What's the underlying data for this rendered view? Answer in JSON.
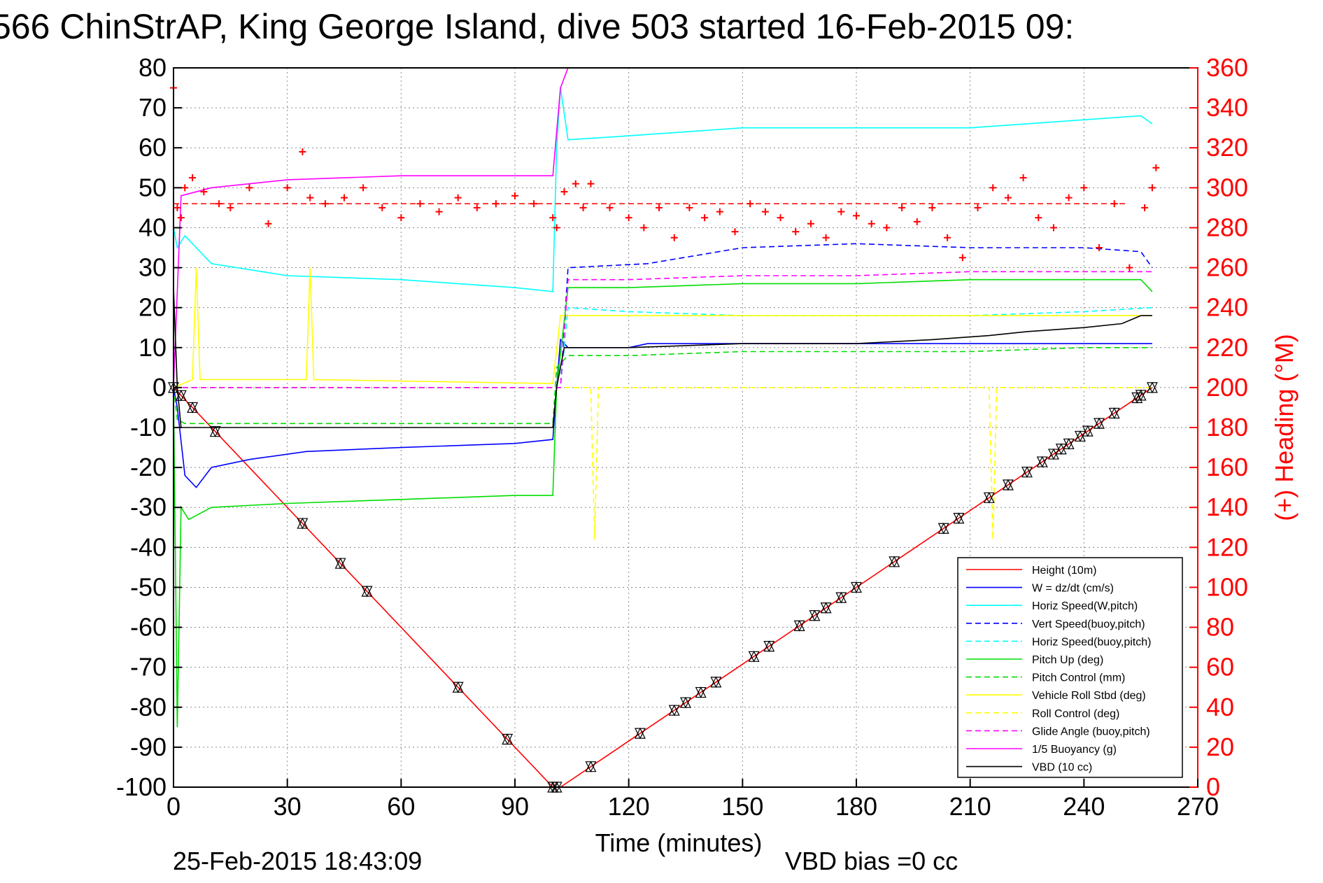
{
  "chart_data": {
    "type": "line",
    "title": "566 ChinStrAP, King George Island, dive 503 started 16-Feb-2015 09:",
    "xlabel": "Time (minutes)",
    "ylabel_right": "(+) Heading (°M)",
    "date_stamp": "25-Feb-2015 18:43:09",
    "vbd_bias": "VBD bias =0 cc",
    "xlim": [
      0,
      270
    ],
    "ylim": [
      -100,
      80
    ],
    "ylim_right": [
      0,
      360
    ],
    "x_ticks": [
      "0",
      "30",
      "60",
      "90",
      "120",
      "150",
      "180",
      "210",
      "240",
      "270"
    ],
    "y_ticks": [
      "80",
      "70",
      "60",
      "50",
      "40",
      "30",
      "20",
      "10",
      "0",
      "-10",
      "-20",
      "-30",
      "-40",
      "-50",
      "-60",
      "-70",
      "-80",
      "-90",
      "-100"
    ],
    "y_right_ticks": [
      "360",
      "340",
      "320",
      "300",
      "280",
      "260",
      "240",
      "220",
      "200",
      "180",
      "160",
      "140",
      "120",
      "100",
      "80",
      "60",
      "40",
      "20",
      "0"
    ],
    "grid": true,
    "legend_position": "bottom-right",
    "series": [
      {
        "name": "Height (10m)",
        "color": "#ff0000",
        "style": "solid",
        "x": [
          0,
          100,
          102,
          258
        ],
        "y": [
          0,
          -100,
          -100,
          0
        ]
      },
      {
        "name": "W = dz/dt (cm/s)",
        "color": "#0000ff",
        "style": "solid",
        "x": [
          0,
          1,
          3,
          6,
          10,
          20,
          35,
          60,
          90,
          100,
          101,
          102,
          104,
          110,
          120,
          125,
          150,
          180,
          210,
          240,
          255,
          258
        ],
        "y": [
          0,
          -5,
          -22,
          -25,
          -20,
          -18,
          -16,
          -15,
          -14,
          -13,
          0,
          12,
          10,
          10,
          10,
          11,
          11,
          11,
          11,
          11,
          11,
          11
        ]
      },
      {
        "name": "Horiz Speed(W,pitch)",
        "color": "#00ffff",
        "style": "solid",
        "x": [
          0,
          1,
          3,
          10,
          30,
          60,
          90,
          100,
          101,
          102,
          104,
          120,
          150,
          180,
          210,
          240,
          255,
          258
        ],
        "y": [
          40,
          35,
          38,
          31,
          28,
          27,
          25,
          24,
          60,
          75,
          62,
          63,
          65,
          65,
          65,
          67,
          68,
          66
        ]
      },
      {
        "name": "Vert Speed(buoy,pitch)",
        "color": "#0000ff",
        "style": "dashed",
        "x": [
          0,
          1,
          102,
          104,
          125,
          150,
          180,
          210,
          240,
          255,
          258
        ],
        "y": [
          0,
          0,
          0,
          30,
          31,
          35,
          36,
          35,
          35,
          34,
          30
        ]
      },
      {
        "name": "Horiz Speed(buoy,pitch)",
        "color": "#00ffff",
        "style": "dashed",
        "x": [
          0,
          1,
          102,
          104,
          120,
          150,
          180,
          210,
          240,
          258
        ],
        "y": [
          0,
          0,
          0,
          20,
          19,
          18,
          18,
          18,
          19,
          20
        ]
      },
      {
        "name": "Pitch Up (deg)",
        "color": "#00dd00",
        "style": "solid",
        "x": [
          0,
          1,
          2,
          4,
          10,
          30,
          60,
          90,
          100,
          101,
          104,
          120,
          150,
          180,
          210,
          240,
          255,
          258
        ],
        "y": [
          0,
          -85,
          -30,
          -33,
          -30,
          -29,
          -28,
          -27,
          -27,
          0,
          25,
          25,
          26,
          26,
          27,
          27,
          27,
          24
        ]
      },
      {
        "name": "Pitch Control (mm)",
        "color": "#00dd00",
        "style": "dashed",
        "x": [
          0,
          1,
          3,
          100,
          101,
          104,
          120,
          150,
          180,
          210,
          240,
          258
        ],
        "y": [
          0,
          -8,
          -9,
          -9,
          5,
          8,
          8,
          9,
          9,
          9,
          10,
          10
        ]
      },
      {
        "name": "Vehicle Roll Stbd (deg)",
        "color": "#ffff00",
        "style": "solid",
        "x": [
          0,
          5,
          6,
          7,
          35,
          36,
          37,
          100,
          102,
          120,
          150,
          180,
          210,
          240,
          258
        ],
        "y": [
          0,
          2,
          30,
          2,
          2,
          30,
          2,
          1,
          18,
          18,
          18,
          18,
          18,
          18,
          18
        ]
      },
      {
        "name": "Roll Control (deg)",
        "color": "#ffff00",
        "style": "dashed",
        "x": [
          0,
          100,
          102,
          110,
          111,
          112,
          215,
          216,
          217,
          258
        ],
        "y": [
          0,
          0,
          0,
          0,
          -38,
          0,
          0,
          -38,
          0,
          0
        ]
      },
      {
        "name": "Glide Angle (buoy,pitch)",
        "color": "#ff00ff",
        "style": "dashed",
        "x": [
          0,
          102,
          104,
          120,
          150,
          180,
          210,
          240,
          258
        ],
        "y": [
          0,
          0,
          27,
          27,
          28,
          28,
          29,
          29,
          29
        ]
      },
      {
        "name": "1/5 Buoyancy (g)",
        "color": "#ff00ff",
        "style": "solid",
        "x": [
          0,
          2,
          10,
          30,
          60,
          90,
          100,
          102,
          104
        ],
        "y": [
          0,
          48,
          50,
          52,
          53,
          53,
          53,
          75,
          80
        ]
      },
      {
        "name": "VBD (10 cc)",
        "color": "#000000",
        "style": "solid",
        "x": [
          0,
          1,
          2,
          100,
          101,
          103,
          120,
          150,
          180,
          200,
          215,
          225,
          240,
          250,
          255,
          258
        ],
        "y": [
          25,
          0,
          -10,
          -10,
          0,
          10,
          10,
          11,
          11,
          12,
          13,
          14,
          15,
          16,
          18,
          18
        ]
      }
    ],
    "heading_series": {
      "name": "Heading",
      "color": "#ff0000",
      "marker": "+",
      "reference_line": 292,
      "x": [
        0,
        1,
        2,
        3,
        5,
        8,
        12,
        15,
        20,
        25,
        30,
        34,
        36,
        40,
        45,
        50,
        55,
        60,
        65,
        70,
        75,
        80,
        85,
        90,
        95,
        100,
        101,
        103,
        106,
        108,
        110,
        115,
        120,
        124,
        128,
        132,
        136,
        140,
        144,
        148,
        152,
        156,
        160,
        164,
        168,
        172,
        176,
        180,
        184,
        188,
        192,
        196,
        200,
        204,
        208,
        212,
        216,
        220,
        224,
        228,
        232,
        236,
        240,
        244,
        248,
        252,
        256,
        258,
        259
      ],
      "y": [
        350,
        290,
        285,
        300,
        305,
        298,
        292,
        290,
        300,
        282,
        300,
        318,
        295,
        292,
        295,
        300,
        290,
        285,
        292,
        288,
        295,
        290,
        292,
        296,
        292,
        285,
        280,
        298,
        302,
        290,
        302,
        290,
        285,
        280,
        290,
        275,
        290,
        285,
        288,
        278,
        292,
        288,
        285,
        278,
        282,
        275,
        288,
        286,
        282,
        280,
        290,
        283,
        290,
        275,
        265,
        290,
        300,
        295,
        305,
        285,
        280,
        295,
        300,
        270,
        292,
        260,
        290,
        300,
        310
      ]
    }
  },
  "legend_order": [
    "Height (10m)",
    "W = dz/dt (cm/s)",
    "Horiz Speed(W,pitch)",
    "Vert Speed(buoy,pitch)",
    "Horiz Speed(buoy,pitch)",
    "Pitch Up (deg)",
    "Pitch Control (mm)",
    "Vehicle Roll Stbd (deg)",
    "Roll Control (deg)",
    "Glide Angle (buoy,pitch)",
    "1/5 Buoyancy (g)",
    "VBD (10 cc)"
  ],
  "height_markers_x": [
    0,
    2,
    5,
    11,
    34,
    44,
    51,
    75,
    88,
    100,
    101,
    110,
    123,
    132,
    135,
    139,
    143,
    153,
    157,
    165,
    169,
    172,
    176,
    180,
    190,
    203,
    207,
    215,
    220,
    225,
    229,
    232,
    234,
    236,
    239,
    241,
    244,
    248,
    254,
    255,
    258
  ]
}
